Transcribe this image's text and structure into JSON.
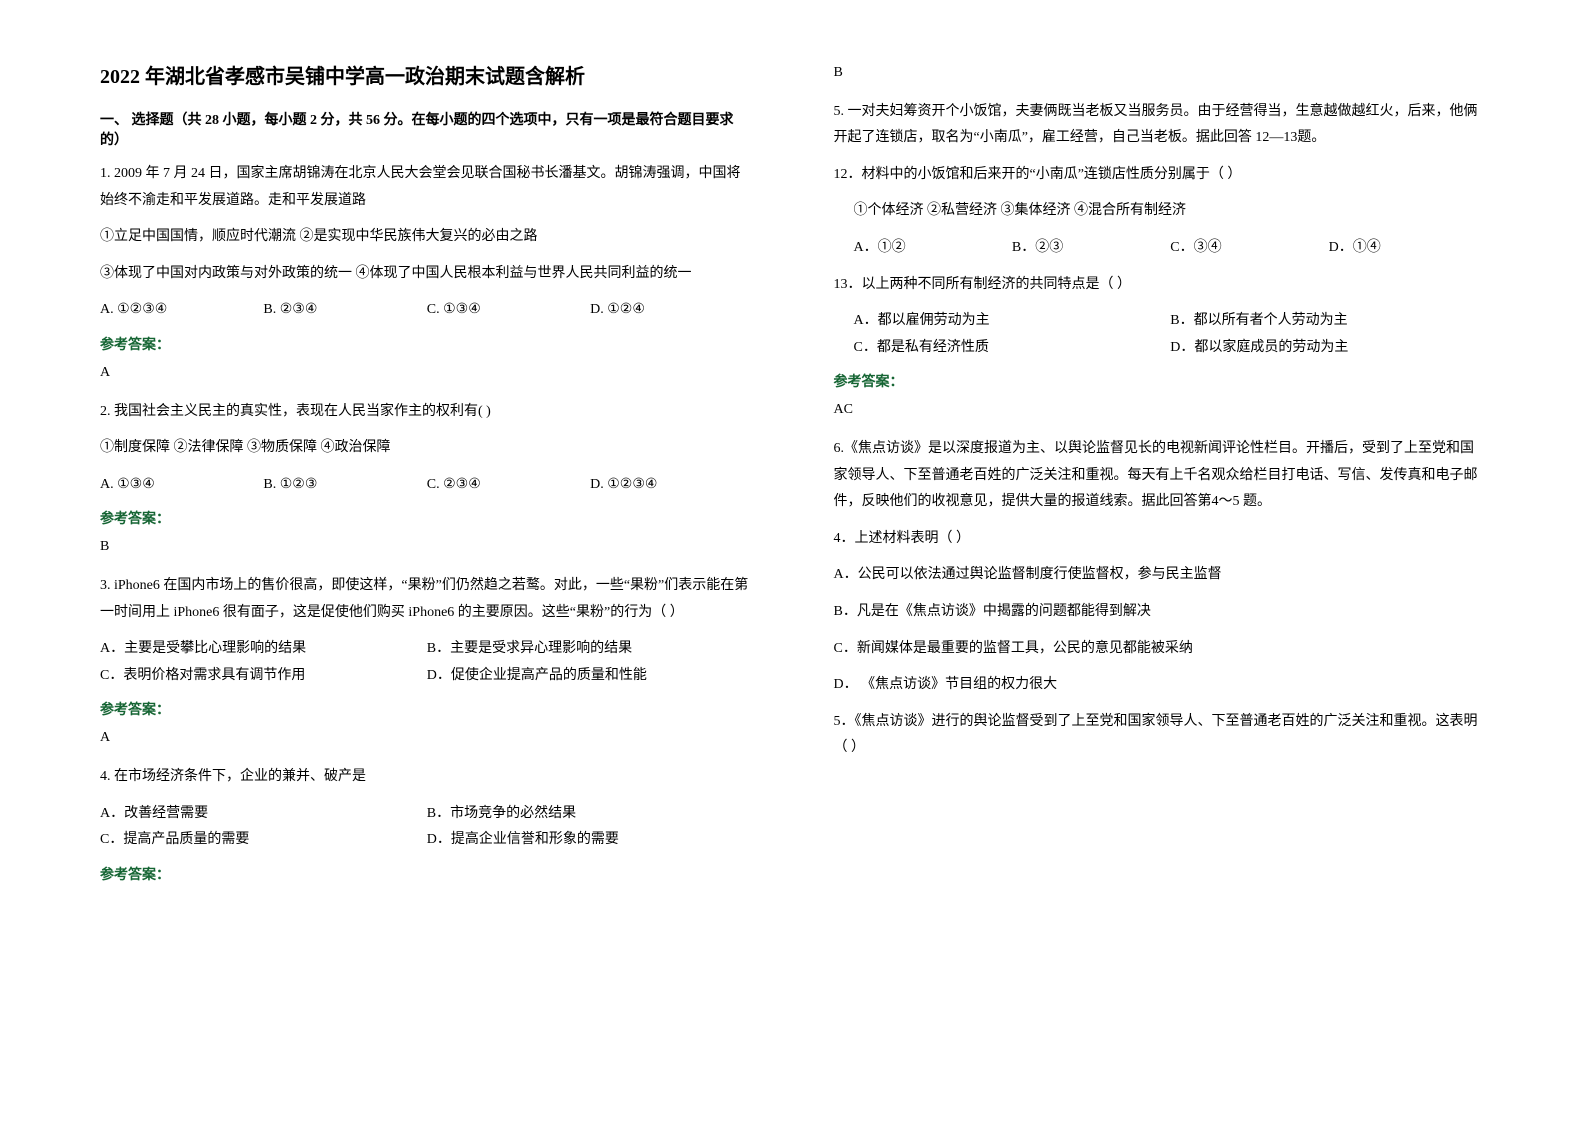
{
  "title": "2022 年湖北省孝感市吴铺中学高一政治期末试题含解析",
  "section1_header": "一、 选择题（共 28 小题，每小题 2 分，共 56 分。在每小题的四个选项中，只有一项是最符合题目要求的）",
  "answer_label": "参考答案：",
  "q1": {
    "stem": "1. 2009 年 7 月 24 日，国家主席胡锦涛在北京人民大会堂会见联合国秘书长潘基文。胡锦涛强调，中国将始终不渝走和平发展道路。走和平发展道路",
    "line1": "①立足中国国情，顺应时代潮流  ②是实现中华民族伟大复兴的必由之路",
    "line2": "③体现了中国对内政策与对外政策的统一   ④体现了中国人民根本利益与世界人民共同利益的统一",
    "opts": {
      "a": "A.  ①②③④",
      "b": "B.  ②③④",
      "c": "C.  ①③④",
      "d": "D.  ①②④"
    },
    "answer": "A"
  },
  "q2": {
    "stem": "2. 我国社会主义民主的真实性，表现在人民当家作主的权利有(   )",
    "line1": "①制度保障       ②法律保障       ③物质保障      ④政治保障",
    "opts": {
      "a": "A.    ①③④",
      "b": "B.    ①②③",
      "c": "C.    ②③④",
      "d": "D.    ①②③④"
    },
    "answer": "B"
  },
  "q3": {
    "stem": "3. iPhone6 在国内市场上的售价很高，即使这样，“果粉”们仍然趋之若鹜。对此，一些“果粉”们表示能在第一时间用上 iPhone6 很有面子，这是促使他们购买 iPhone6 的主要原因。这些“果粉”的行为（         ）",
    "opts": {
      "a": "A．主要是受攀比心理影响的结果",
      "b": "B．主要是受求异心理影响的结果",
      "c": "C．表明价格对需求具有调节作用",
      "d": "D．促使企业提高产品的质量和性能"
    },
    "answer": "A"
  },
  "q4": {
    "stem": "4. 在市场经济条件下，企业的兼并、破产是",
    "opts": {
      "a": "A．改善经营需要",
      "b": "B．市场竞争的必然结果",
      "c": "C．提高产品质量的需要",
      "d": "D．提高企业信誉和形象的需要"
    },
    "answer": "B"
  },
  "q5": {
    "intro": "5. 一对夫妇筹资开个小饭馆，夫妻俩既当老板又当服务员。由于经营得当，生意越做越红火，后来，他俩开起了连锁店，取名为“小南瓜”，雇工经营，自己当老板。据此回答 12—13题。",
    "q12": {
      "stem": "12．材料中的小饭馆和后来开的“小南瓜”连锁店性质分别属于（          ）",
      "line1": "①个体经济     ②私营经济     ③集体经济     ④混合所有制经济",
      "opts": {
        "a": "A．①②",
        "b": "B．②③",
        "c": "C．③④",
        "d": "D．①④"
      }
    },
    "q13": {
      "stem": "13．以上两种不同所有制经济的共同特点是（         ）",
      "opts": {
        "a": "A．都以雇佣劳动为主",
        "b": "B．都以所有者个人劳动为主",
        "c": "C．都是私有经济性质",
        "d": "D．都以家庭成员的劳动为主"
      }
    },
    "answer": "AC"
  },
  "q6": {
    "intro": "6.《焦点访谈》是以深度报道为主、以舆论监督见长的电视新闻评论性栏目。开播后，受到了上至党和国家领导人、下至普通老百姓的广泛关注和重视。每天有上千名观众给栏目打电话、写信、发传真和电子邮件，反映他们的收视意见，提供大量的报道线索。据此回答第4～5 题。",
    "q4": {
      "stem": "4．上述材料表明（    ）",
      "opts": {
        "a": "A．公民可以依法通过舆论监督制度行使监督权，参与民主监督",
        "b": "B．凡是在《焦点访谈》中揭露的问题都能得到解决",
        "c": "C．新闻媒体是最重要的监督工具，公民的意见都能被采纳",
        "d": "D． 《焦点访谈》节目组的权力很大"
      }
    },
    "q5": {
      "stem": "5．《焦点访谈》进行的舆论监督受到了上至党和国家领导人、下至普通老百姓的广泛关注和重视。这表明（    ）"
    }
  }
}
